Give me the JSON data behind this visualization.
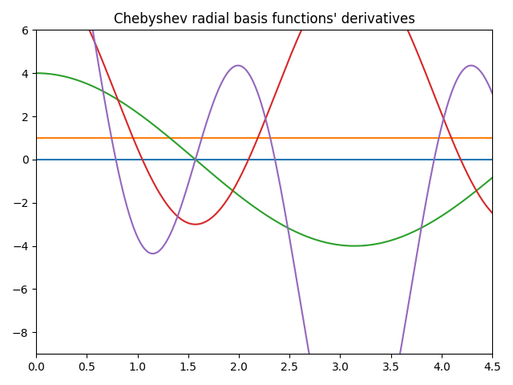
{
  "title": "Chebyshev radial basis functions' derivatives",
  "xlim": [
    0,
    4.5
  ],
  "ylim": [
    -9,
    6
  ],
  "colors": [
    "#1f77b4",
    "#ff7f0e",
    "#2ca02c",
    "#d62728",
    "#9467bd"
  ],
  "linewidth": 1.5,
  "n_points": 500
}
